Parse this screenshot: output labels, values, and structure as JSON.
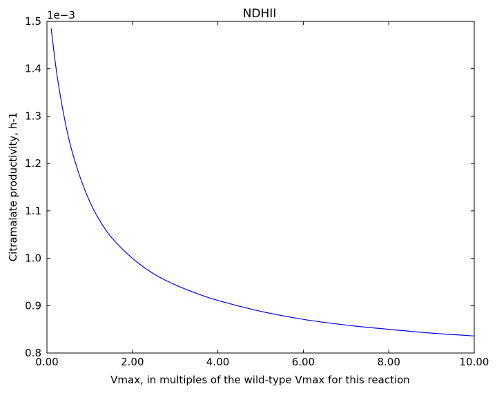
{
  "chart_data": {
    "type": "line",
    "title": "NDHII",
    "xlabel": "Vmax, in multiples of the wild-type Vmax for this reaction",
    "ylabel": "Citramalate productivity, h-1",
    "y_offset_text": "1e−3",
    "xlim": [
      0,
      10
    ],
    "ylim": [
      0.8,
      1.5
    ],
    "x_ticks": [
      0,
      2,
      4,
      6,
      8,
      10
    ],
    "x_tick_labels": [
      "0.00",
      "2.00",
      "4.00",
      "6.00",
      "8.00",
      "10.00"
    ],
    "y_ticks": [
      0.8,
      0.9,
      1.0,
      1.1,
      1.2,
      1.3,
      1.4,
      1.5
    ],
    "y_tick_labels": [
      "0.8",
      "0.9",
      "1.0",
      "1.1",
      "1.2",
      "1.3",
      "1.4",
      "1.5"
    ],
    "grid": false,
    "series": [
      {
        "color": "#0000ff",
        "x": [
          0.1,
          0.2,
          0.3,
          0.4,
          0.5,
          0.6,
          0.8,
          1.0,
          1.2,
          1.5,
          2.0,
          2.5,
          3.0,
          3.5,
          4.0,
          5.0,
          6.0,
          7.0,
          8.0,
          9.0,
          10.0
        ],
        "y": [
          1.485,
          1.41,
          1.35,
          1.3,
          1.257,
          1.222,
          1.165,
          1.12,
          1.085,
          1.045,
          1.0,
          0.967,
          0.944,
          0.926,
          0.911,
          0.888,
          0.871,
          0.859,
          0.85,
          0.842,
          0.836
        ]
      }
    ]
  }
}
